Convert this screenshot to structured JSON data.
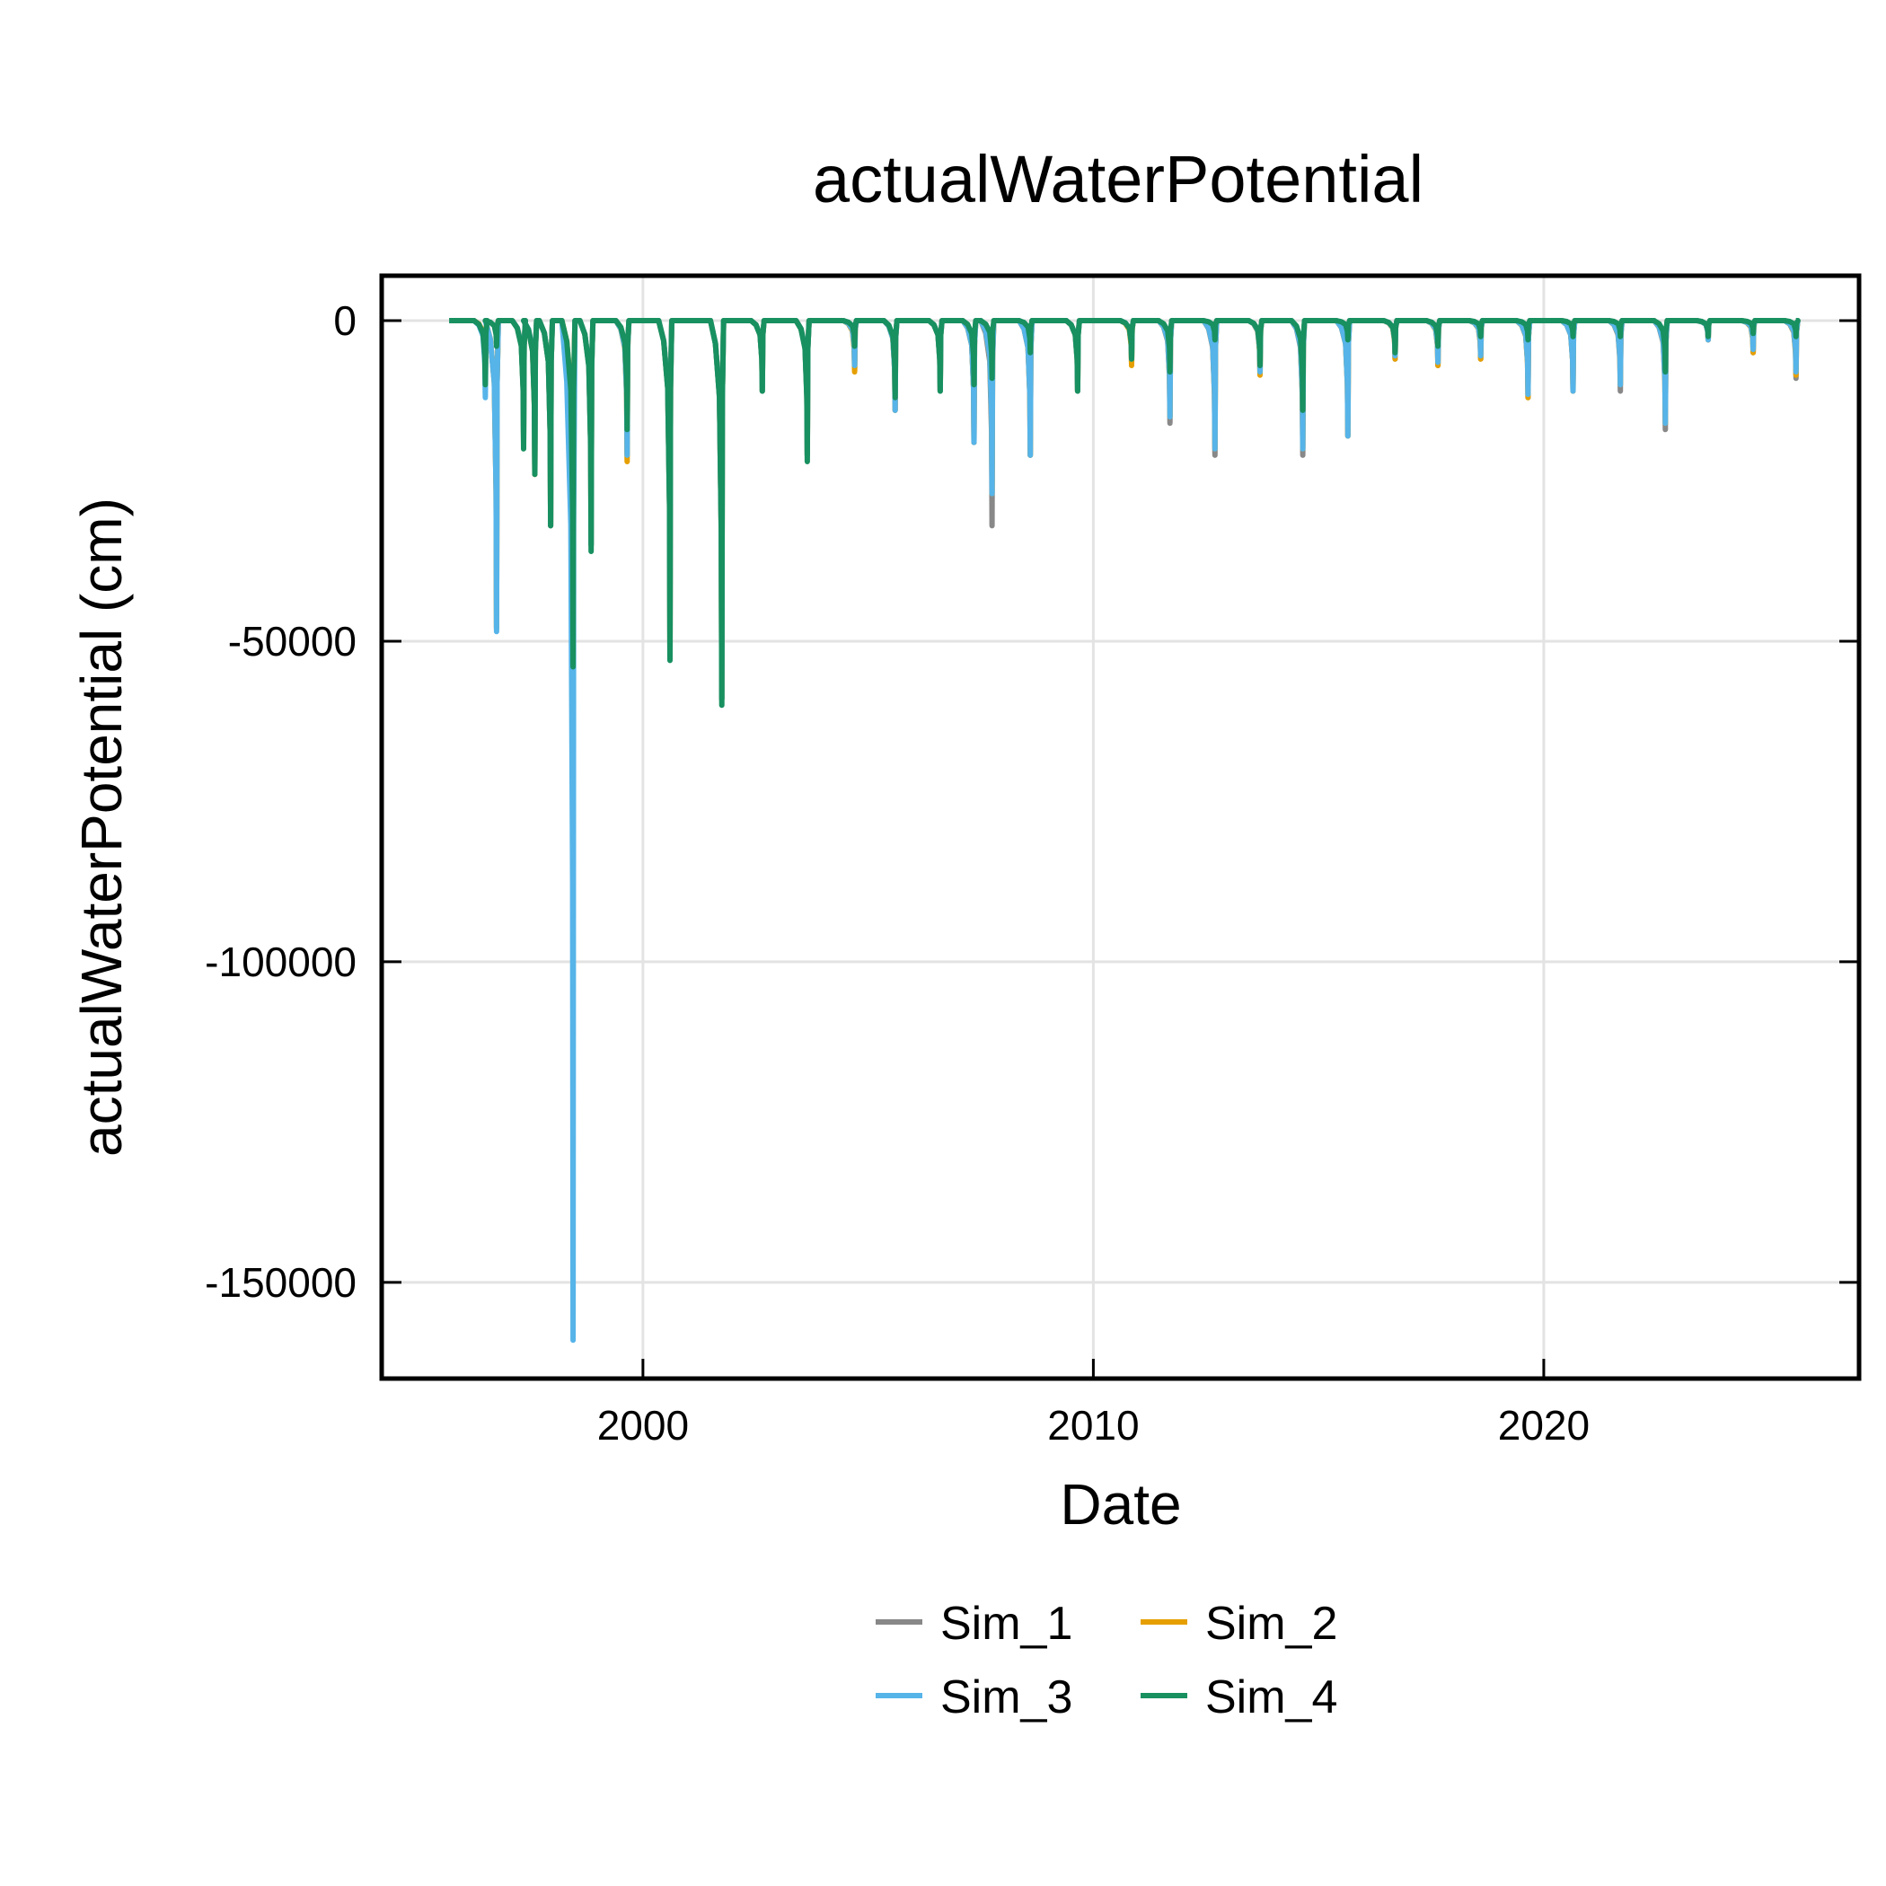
{
  "chart_data": {
    "type": "line",
    "title": "actualWaterPotential",
    "xlabel": "Date",
    "ylabel": "actualWaterPotential (cm)",
    "xlim": [
      1994.2,
      2027.0
    ],
    "ylim": [
      -165000,
      7000
    ],
    "xticks": [
      2000,
      2010,
      2020
    ],
    "yticks": [
      0,
      -50000,
      -100000,
      -150000
    ],
    "grid": true,
    "legend_position": "bottom",
    "legend_columns": 2,
    "series": [
      {
        "name": "Sim_1",
        "color": "#888888",
        "dips": [
          [
            1996.5,
            -9000
          ],
          [
            1996.75,
            -48000
          ],
          [
            1997.35,
            -19000
          ],
          [
            1997.6,
            -23000
          ],
          [
            1997.95,
            -32000
          ],
          [
            1998.45,
            -58000
          ],
          [
            1998.85,
            -35000
          ],
          [
            1999.65,
            -21000
          ],
          [
            2000.6,
            -52000
          ],
          [
            2001.75,
            -59000
          ],
          [
            2002.65,
            -11000
          ],
          [
            2003.65,
            -21000
          ],
          [
            2004.7,
            -7500
          ],
          [
            2005.6,
            -14000
          ],
          [
            2006.6,
            -11000
          ],
          [
            2007.35,
            -19000
          ],
          [
            2007.75,
            -32000
          ],
          [
            2008.6,
            -21000
          ],
          [
            2009.65,
            -11000
          ],
          [
            2010.85,
            -6500
          ],
          [
            2011.7,
            -16000
          ],
          [
            2012.7,
            -21000
          ],
          [
            2013.7,
            -8000
          ],
          [
            2014.65,
            -21000
          ],
          [
            2015.65,
            -18000
          ],
          [
            2016.7,
            -6000
          ],
          [
            2017.65,
            -7000
          ],
          [
            2018.6,
            -6000
          ],
          [
            2019.65,
            -12000
          ],
          [
            2020.65,
            -11000
          ],
          [
            2021.7,
            -11000
          ],
          [
            2022.7,
            -17000
          ],
          [
            2023.65,
            -3000
          ],
          [
            2024.65,
            -5000
          ],
          [
            2025.6,
            -9000
          ]
        ]
      },
      {
        "name": "Sim_2",
        "color": "#E69F00",
        "dips": [
          [
            1996.5,
            -9000
          ],
          [
            1996.75,
            -48000
          ],
          [
            1997.35,
            -19000
          ],
          [
            1997.6,
            -24000
          ],
          [
            1997.95,
            -32000
          ],
          [
            1998.45,
            -54000
          ],
          [
            1998.85,
            -35000
          ],
          [
            1999.65,
            -22000
          ],
          [
            2000.6,
            -52000
          ],
          [
            2001.75,
            -59000
          ],
          [
            2002.65,
            -11000
          ],
          [
            2003.65,
            -21000
          ],
          [
            2004.7,
            -8000
          ],
          [
            2005.6,
            -14000
          ],
          [
            2006.6,
            -11000
          ],
          [
            2007.35,
            -19000
          ],
          [
            2007.75,
            -27000
          ],
          [
            2008.6,
            -21000
          ],
          [
            2009.65,
            -11000
          ],
          [
            2010.85,
            -7000
          ],
          [
            2011.7,
            -15000
          ],
          [
            2012.7,
            -20000
          ],
          [
            2013.7,
            -8500
          ],
          [
            2014.65,
            -20000
          ],
          [
            2015.65,
            -18000
          ],
          [
            2016.7,
            -6000
          ],
          [
            2017.65,
            -7000
          ],
          [
            2018.6,
            -6000
          ],
          [
            2019.65,
            -12000
          ],
          [
            2020.65,
            -11000
          ],
          [
            2021.7,
            -10000
          ],
          [
            2022.7,
            -16000
          ],
          [
            2023.65,
            -3000
          ],
          [
            2024.65,
            -5000
          ],
          [
            2025.6,
            -8500
          ]
        ]
      },
      {
        "name": "Sim_3",
        "color": "#56B4E9",
        "dips": [
          [
            1996.5,
            -12000
          ],
          [
            1996.75,
            -48500
          ],
          [
            1997.35,
            -19000
          ],
          [
            1997.6,
            -23000
          ],
          [
            1997.95,
            -32000
          ],
          [
            1998.45,
            -159000
          ],
          [
            1998.85,
            -35000
          ],
          [
            1999.65,
            -21000
          ],
          [
            2000.6,
            -52000
          ],
          [
            2001.75,
            -59000
          ],
          [
            2002.65,
            -11000
          ],
          [
            2003.65,
            -21000
          ],
          [
            2004.7,
            -7000
          ],
          [
            2005.6,
            -14000
          ],
          [
            2006.6,
            -11000
          ],
          [
            2007.35,
            -19000
          ],
          [
            2007.75,
            -27000
          ],
          [
            2008.6,
            -21000
          ],
          [
            2009.65,
            -11000
          ],
          [
            2010.85,
            -6000
          ],
          [
            2011.7,
            -15000
          ],
          [
            2012.7,
            -20000
          ],
          [
            2013.7,
            -8000
          ],
          [
            2014.65,
            -20000
          ],
          [
            2015.65,
            -18000
          ],
          [
            2016.7,
            -5500
          ],
          [
            2017.65,
            -6500
          ],
          [
            2018.6,
            -5500
          ],
          [
            2019.65,
            -11500
          ],
          [
            2020.65,
            -11000
          ],
          [
            2021.7,
            -10000
          ],
          [
            2022.7,
            -16000
          ],
          [
            2023.65,
            -3000
          ],
          [
            2024.65,
            -4500
          ],
          [
            2025.6,
            -8000
          ]
        ]
      },
      {
        "name": "Sim_4",
        "color": "#189060",
        "dips": [
          [
            1996.5,
            -10000
          ],
          [
            1996.75,
            -4000
          ],
          [
            1997.35,
            -20000
          ],
          [
            1997.6,
            -24000
          ],
          [
            1997.95,
            -32000
          ],
          [
            1998.45,
            -54000
          ],
          [
            1998.85,
            -36000
          ],
          [
            1999.65,
            -17000
          ],
          [
            2000.6,
            -53000
          ],
          [
            2001.75,
            -60000
          ],
          [
            2002.65,
            -11000
          ],
          [
            2003.65,
            -22000
          ],
          [
            2004.7,
            -4000
          ],
          [
            2005.6,
            -12000
          ],
          [
            2006.6,
            -11000
          ],
          [
            2007.35,
            -10000
          ],
          [
            2007.75,
            -9000
          ],
          [
            2008.6,
            -5000
          ],
          [
            2009.65,
            -11000
          ],
          [
            2010.85,
            -6000
          ],
          [
            2011.7,
            -8000
          ],
          [
            2012.7,
            -3000
          ],
          [
            2013.7,
            -7000
          ],
          [
            2014.65,
            -14000
          ],
          [
            2015.65,
            -3000
          ],
          [
            2016.7,
            -5000
          ],
          [
            2017.65,
            -4000
          ],
          [
            2018.6,
            -2500
          ],
          [
            2019.65,
            -3000
          ],
          [
            2020.65,
            -2500
          ],
          [
            2021.7,
            -2500
          ],
          [
            2022.7,
            -8000
          ],
          [
            2023.65,
            -2500
          ],
          [
            2024.65,
            -2000
          ],
          [
            2025.6,
            -2500
          ]
        ]
      }
    ],
    "x_start": 1995.7,
    "x_end": 2025.6
  }
}
